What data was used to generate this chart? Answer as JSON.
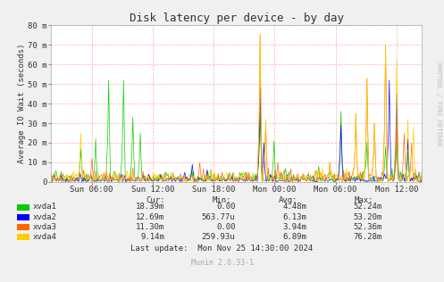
{
  "title": "Disk latency per device - by day",
  "ylabel": "Average IO Wait (seconds)",
  "background_color": "#f0f0f0",
  "plot_bg_color": "#ffffff",
  "grid_color": "#ff9999",
  "x_ticks_labels": [
    "Sun 06:00",
    "Sun 12:00",
    "Sun 18:00",
    "Mon 00:00",
    "Mon 06:00",
    "Mon 12:00"
  ],
  "y_ticks_labels": [
    "0",
    "10 m",
    "20 m",
    "30 m",
    "40 m",
    "50 m",
    "60 m",
    "70 m",
    "80 m"
  ],
  "y_max": 0.08,
  "y_tick_values": [
    0,
    0.01,
    0.02,
    0.03,
    0.04,
    0.05,
    0.06,
    0.07,
    0.08
  ],
  "series": [
    {
      "name": "xvda1",
      "color": "#00cc00"
    },
    {
      "name": "xvda2",
      "color": "#0000ff"
    },
    {
      "name": "xvda3",
      "color": "#ff6600"
    },
    {
      "name": "xvda4",
      "color": "#ffcc00"
    }
  ],
  "legend_data": {
    "headers": [
      "Cur:",
      "Min:",
      "Avg:",
      "Max:"
    ],
    "rows": [
      [
        "xvda1",
        "18.39m",
        "0.00",
        "4.48m",
        "52.24m"
      ],
      [
        "xvda2",
        "12.69m",
        "563.77u",
        "6.13m",
        "53.20m"
      ],
      [
        "xvda3",
        "11.30m",
        "0.00",
        "3.94m",
        "52.36m"
      ],
      [
        "xvda4",
        "9.14m",
        "259.93u",
        "6.89m",
        "76.28m"
      ]
    ]
  },
  "last_update": "Last update:  Mon Nov 25 14:30:00 2024",
  "munin_version": "Munin 2.0.33-1",
  "rrdtool_label": "RRDTOOL / TOBI OETIKER",
  "title_fontsize": 9,
  "axis_fontsize": 6.5,
  "legend_fontsize": 6.5,
  "rrdtool_fontsize": 5
}
